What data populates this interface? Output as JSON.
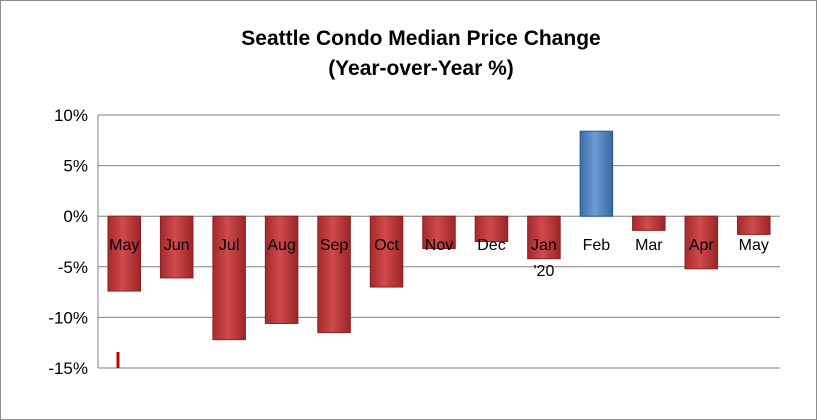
{
  "chart_data": {
    "type": "bar",
    "title": "Seattle Condo Median Price Change",
    "subtitle": "(Year-over-Year %)",
    "categories": [
      "May",
      "Jun",
      "Jul",
      "Aug",
      "Sep",
      "Oct",
      "Nov",
      "Dec",
      "Jan '20",
      "Feb",
      "Mar",
      "Apr",
      "May"
    ],
    "category_lines": [
      [
        "May"
      ],
      [
        "Jun"
      ],
      [
        "Jul"
      ],
      [
        "Aug"
      ],
      [
        "Sep"
      ],
      [
        "Oct"
      ],
      [
        "Nov"
      ],
      [
        "Dec"
      ],
      [
        "Jan",
        "'20"
      ],
      [
        "Feb"
      ],
      [
        "Mar"
      ],
      [
        "Apr"
      ],
      [
        "May"
      ]
    ],
    "values": [
      -7.4,
      -6.1,
      -12.2,
      -10.6,
      -11.5,
      -7.0,
      -3.2,
      -2.5,
      -4.2,
      8.4,
      -1.4,
      -5.2,
      -1.8
    ],
    "ylim": [
      -15,
      10
    ],
    "yticks": [
      10,
      5,
      0,
      -5,
      -10,
      -15
    ],
    "ytick_labels": [
      "10%",
      "5%",
      "0%",
      "-5%",
      "-10%",
      "-15%"
    ],
    "xlabel": "",
    "ylabel": "",
    "grid": true,
    "legend": "none",
    "colors": {
      "negative": "#c0393b",
      "negative_dark": "#8e1f21",
      "positive": "#4f81bd",
      "positive_dark": "#2d5a8f",
      "grid": "#808080",
      "marker": "#c00000"
    }
  }
}
